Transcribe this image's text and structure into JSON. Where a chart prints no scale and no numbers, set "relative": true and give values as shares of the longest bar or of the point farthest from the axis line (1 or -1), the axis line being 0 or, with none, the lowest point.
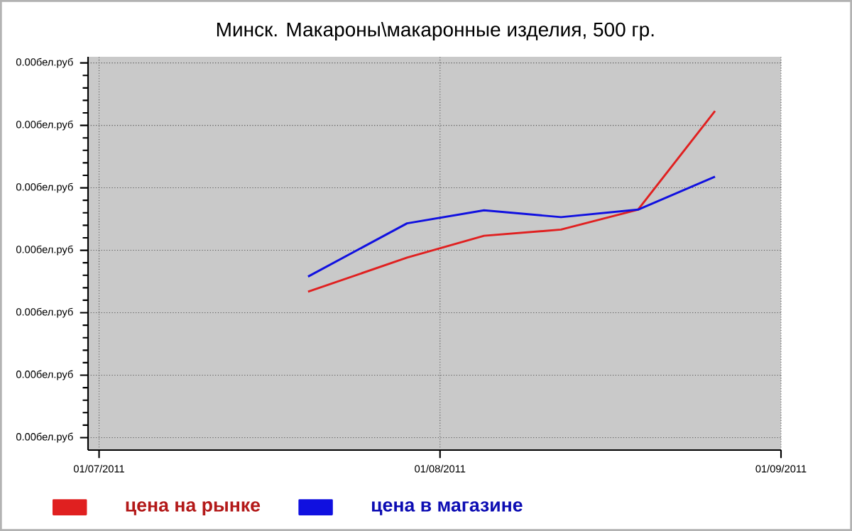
{
  "chart_data": {
    "type": "line",
    "title": "Минск. Макароны\\макаронные изделия, 500 гр.",
    "relative": true,
    "series": [
      {
        "name": "цена на рынке",
        "color": "#e02020",
        "x": [
          "2011-07-20",
          "2011-07-29",
          "2011-08-05",
          "2011-08-12",
          "2011-08-19",
          "2011-08-26"
        ],
        "values": [
          0.447,
          0.551,
          0.618,
          0.637,
          0.698,
          1
        ]
      },
      {
        "name": "цена в магазине",
        "color": "#1010e0",
        "x": [
          "2011-07-20",
          "2011-07-29",
          "2011-08-05",
          "2011-08-12",
          "2011-08-19",
          "2011-08-26"
        ],
        "values": [
          0.493,
          0.656,
          0.696,
          0.675,
          0.698,
          0.799
        ]
      }
    ],
    "xlim": [
      "2011-06-30",
      "2011-09-01"
    ],
    "xticks": [
      {
        "value": "2011-07-01",
        "label": "01/07/2011"
      },
      {
        "value": "2011-08-01",
        "label": "01/08/2011"
      },
      {
        "value": "2011-09-01",
        "label": "01/09/2011"
      }
    ],
    "annotations": [
      "0.00бел.руб",
      "0.00бел.руб",
      "0.00бел.руб",
      "0.00бел.руб",
      "0.00бел.руб",
      "0.00бел.руб",
      "0.00бел.руб"
    ],
    "grid": true,
    "legend": "bottom left",
    "marker": "none",
    "line_style": "solid"
  }
}
